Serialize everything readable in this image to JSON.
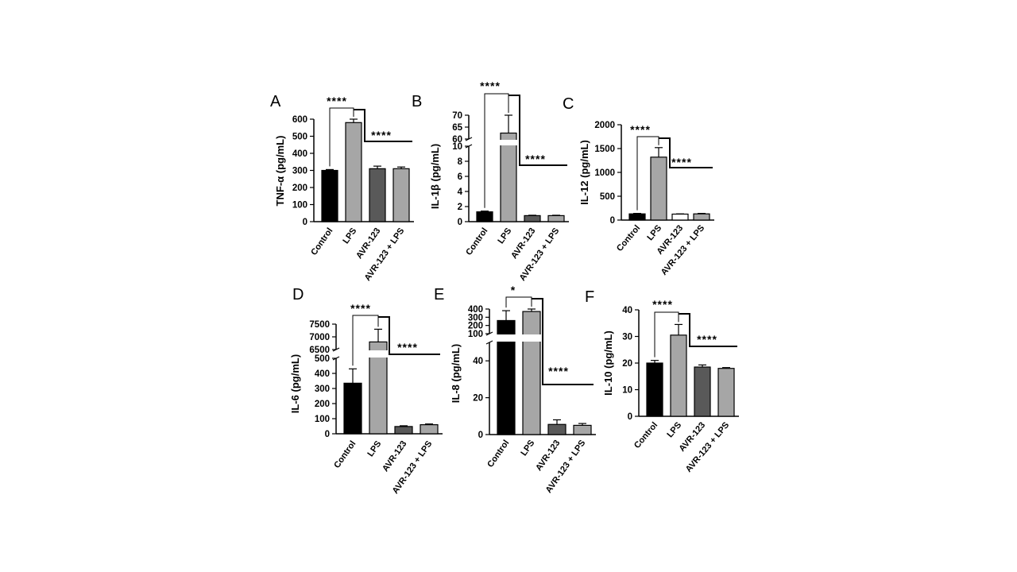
{
  "colors": {
    "black": "#000000",
    "light_gray": "#a6a6a6",
    "dark_gray": "#595959",
    "white": "#ffffff"
  },
  "chart_data": [
    {
      "panel": "A",
      "type": "bar",
      "ylabel": "TNF-α (pg/mL)",
      "categories": [
        "Control",
        "LPS",
        "AVR-123",
        "AVR-123 + LPS"
      ],
      "values": [
        300,
        580,
        310,
        310
      ],
      "errors": [
        5,
        20,
        15,
        10
      ],
      "bar_colors": [
        "#000000",
        "#a6a6a6",
        "#595959",
        "#a6a6a6"
      ],
      "ylim": [
        0,
        600
      ],
      "yticks": [
        0,
        100,
        200,
        300,
        400,
        500,
        600
      ],
      "significance": [
        "****",
        "****"
      ]
    },
    {
      "panel": "B",
      "type": "bar",
      "ylabel": "IL-1β (pg/mL)",
      "categories": [
        "Control",
        "LPS",
        "AVR-123",
        "AVR-123 + LPS"
      ],
      "values": [
        1.3,
        62.5,
        0.8,
        0.8
      ],
      "errors": [
        0.1,
        7.5,
        0.05,
        0.05
      ],
      "bar_colors": [
        "#000000",
        "#a6a6a6",
        "#595959",
        "#a6a6a6"
      ],
      "ylim": [
        0,
        70
      ],
      "axis_break": [
        10,
        60
      ],
      "yticks": [
        0,
        2,
        4,
        6,
        8,
        10,
        60,
        65,
        70
      ],
      "significance": [
        "****",
        "****"
      ]
    },
    {
      "panel": "C",
      "type": "bar",
      "ylabel": "IL-12 (pg/mL)",
      "categories": [
        "Control",
        "LPS",
        "AVR-123",
        "AVR-123 + LPS"
      ],
      "values": [
        130,
        1320,
        125,
        130
      ],
      "errors": [
        10,
        200,
        5,
        10
      ],
      "bar_colors": [
        "#000000",
        "#a6a6a6",
        "#ffffff",
        "#a6a6a6"
      ],
      "ylim": [
        0,
        2000
      ],
      "yticks": [
        0,
        500,
        1000,
        1500,
        2000
      ],
      "significance": [
        "****",
        "****"
      ]
    },
    {
      "panel": "D",
      "type": "bar",
      "ylabel": "IL-6 (pg/mL)",
      "categories": [
        "Control",
        "LPS",
        "AVR-123",
        "AVR-123 + LPS"
      ],
      "values": [
        335,
        6800,
        48,
        60
      ],
      "errors": [
        95,
        500,
        5,
        5
      ],
      "bar_colors": [
        "#000000",
        "#a6a6a6",
        "#595959",
        "#a6a6a6"
      ],
      "ylim": [
        0,
        7500
      ],
      "axis_break": [
        500,
        6500
      ],
      "yticks": [
        0,
        100,
        200,
        300,
        400,
        500,
        6500,
        7000,
        7500
      ],
      "significance": [
        "****",
        "****"
      ]
    },
    {
      "panel": "E",
      "type": "bar",
      "ylabel": "IL-8 (pg/mL)",
      "categories": [
        "Control",
        "LPS",
        "AVR-123",
        "AVR-123 + LPS"
      ],
      "values": [
        260,
        370,
        5.5,
        5
      ],
      "errors": [
        120,
        40,
        2.5,
        1
      ],
      "bar_colors": [
        "#000000",
        "#a6a6a6",
        "#595959",
        "#a6a6a6"
      ],
      "ylim": [
        0,
        400
      ],
      "axis_break": [
        50,
        100
      ],
      "yticks": [
        0,
        20,
        40,
        100,
        200,
        300,
        400
      ],
      "significance": [
        "*",
        "****"
      ]
    },
    {
      "panel": "F",
      "type": "bar",
      "ylabel": "IL-10 (pg/mL)",
      "categories": [
        "Control",
        "LPS",
        "AVR-123",
        "AVR-123 + LPS"
      ],
      "values": [
        20,
        30.5,
        18.5,
        18
      ],
      "errors": [
        1,
        4,
        0.8,
        0.3
      ],
      "bar_colors": [
        "#000000",
        "#a6a6a6",
        "#595959",
        "#a6a6a6"
      ],
      "ylim": [
        0,
        40
      ],
      "yticks": [
        0,
        10,
        20,
        30,
        40
      ],
      "significance": [
        "****",
        "****"
      ]
    }
  ]
}
